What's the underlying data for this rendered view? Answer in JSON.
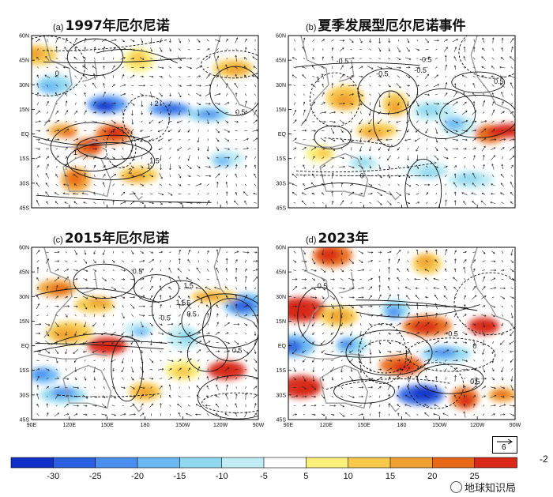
{
  "chart_data": [
    {
      "type": "heatmap",
      "panel_letter": "(a)",
      "title": "1997年厄尔尼诺",
      "y_ticks": [
        "60N",
        "45N",
        "30N",
        "15N",
        "EQ",
        "15S",
        "30S",
        "45S"
      ],
      "x_ticks": [],
      "contour_labels": [
        "2",
        "1.5",
        "2",
        "0",
        "0.5",
        "1",
        "1"
      ],
      "anomaly_patches": [
        {
          "lon": 95,
          "lat": 48,
          "value": 12
        },
        {
          "lon": 108,
          "lat": 30,
          "value": -12
        },
        {
          "lon": 150,
          "lat": 18,
          "value": -25
        },
        {
          "lon": 200,
          "lat": 15,
          "value": -22
        },
        {
          "lon": 230,
          "lat": 12,
          "value": -15
        },
        {
          "lon": 115,
          "lat": 2,
          "value": 18
        },
        {
          "lon": 135,
          "lat": -8,
          "value": 22
        },
        {
          "lon": 155,
          "lat": 0,
          "value": 20
        },
        {
          "lon": 125,
          "lat": -28,
          "value": 15
        },
        {
          "lon": 175,
          "lat": -25,
          "value": 12
        },
        {
          "lon": 245,
          "lat": -15,
          "value": -10
        },
        {
          "lon": 175,
          "lat": 45,
          "value": 8
        },
        {
          "lon": 250,
          "lat": 40,
          "value": 10
        }
      ]
    },
    {
      "type": "heatmap",
      "panel_letter": "(b)",
      "title": "夏季发展型厄尔尼诺事件",
      "y_ticks": [
        "60N",
        "45N",
        "30N",
        "15N",
        "EQ",
        "15S",
        "30S",
        "45S"
      ],
      "x_ticks": [],
      "contour_labels": [
        "-0.5",
        "-0.5",
        "0.5",
        "-0.5",
        "0",
        "1",
        "-0.5"
      ],
      "anomaly_patches": [
        {
          "lon": 135,
          "lat": 22,
          "value": 10
        },
        {
          "lon": 175,
          "lat": 18,
          "value": 12
        },
        {
          "lon": 205,
          "lat": 14,
          "value": -8
        },
        {
          "lon": 160,
          "lat": 2,
          "value": 10
        },
        {
          "lon": 225,
          "lat": 5,
          "value": -10
        },
        {
          "lon": 250,
          "lat": 0,
          "value": 22
        },
        {
          "lon": 265,
          "lat": 2,
          "value": 25
        },
        {
          "lon": 115,
          "lat": -12,
          "value": 8
        },
        {
          "lon": 150,
          "lat": -18,
          "value": -8
        },
        {
          "lon": 200,
          "lat": -22,
          "value": -8
        },
        {
          "lon": 235,
          "lat": -28,
          "value": -8
        }
      ]
    },
    {
      "type": "heatmap",
      "panel_letter": "(c)",
      "title": "2015年厄尔尼诺",
      "y_ticks": [
        "60N",
        "45N",
        "30N",
        "15N",
        "EQ",
        "15S",
        "30S",
        "45S"
      ],
      "x_ticks": [
        "90E",
        "120E",
        "150E",
        "180",
        "150W",
        "120W",
        "90W"
      ],
      "contour_labels": [
        "0.5",
        "1.5",
        "0.5",
        "1.5",
        "-0.5",
        "0.5",
        "1",
        "1.5"
      ],
      "anomaly_patches": [
        {
          "lon": 110,
          "lat": 35,
          "value": 15
        },
        {
          "lon": 140,
          "lat": 25,
          "value": 12
        },
        {
          "lon": 120,
          "lat": 8,
          "value": 10
        },
        {
          "lon": 150,
          "lat": 0,
          "value": 28
        },
        {
          "lon": 175,
          "lat": 10,
          "value": -10
        },
        {
          "lon": 210,
          "lat": 5,
          "value": -8
        },
        {
          "lon": 260,
          "lat": 25,
          "value": -20
        },
        {
          "lon": 235,
          "lat": 30,
          "value": 10
        },
        {
          "lon": 100,
          "lat": -18,
          "value": -18
        },
        {
          "lon": 115,
          "lat": -30,
          "value": -15
        },
        {
          "lon": 180,
          "lat": -28,
          "value": 12
        },
        {
          "lon": 245,
          "lat": -15,
          "value": 26
        },
        {
          "lon": 210,
          "lat": -15,
          "value": 8
        }
      ]
    },
    {
      "type": "heatmap",
      "panel_letter": "(d)",
      "title": "2023年",
      "y_ticks": [
        "60N",
        "45N",
        "30N",
        "15N",
        "EQ",
        "15S",
        "30S",
        "45S"
      ],
      "x_ticks": [
        "90E",
        "120E",
        "150E",
        "180",
        "150W",
        "120W",
        "90W"
      ],
      "contour_labels": [
        "0",
        "-0.5",
        "-1",
        "0.5",
        "0.5"
      ],
      "anomaly_patches": [
        {
          "lon": 125,
          "lat": 55,
          "value": 20
        },
        {
          "lon": 200,
          "lat": 50,
          "value": 12
        },
        {
          "lon": 100,
          "lat": 22,
          "value": 26
        },
        {
          "lon": 130,
          "lat": 18,
          "value": 12
        },
        {
          "lon": 200,
          "lat": 12,
          "value": 22
        },
        {
          "lon": 245,
          "lat": 12,
          "value": 28
        },
        {
          "lon": 175,
          "lat": 22,
          "value": -15
        },
        {
          "lon": 95,
          "lat": 0,
          "value": -20
        },
        {
          "lon": 140,
          "lat": 0,
          "value": -15
        },
        {
          "lon": 215,
          "lat": -5,
          "value": -15
        },
        {
          "lon": 180,
          "lat": -12,
          "value": 24
        },
        {
          "lon": 100,
          "lat": -25,
          "value": 26
        },
        {
          "lon": 195,
          "lat": -30,
          "value": -28
        },
        {
          "lon": 230,
          "lat": -32,
          "value": 22
        },
        {
          "lon": 260,
          "lat": -30,
          "value": 18
        }
      ]
    }
  ],
  "extent": {
    "lon_min": 90,
    "lon_max": 270,
    "lat_min": -45,
    "lat_max": 60
  },
  "colorbar": {
    "boundaries": [
      -35,
      -30,
      -25,
      -20,
      -15,
      -10,
      -5,
      5,
      10,
      15,
      20,
      25,
      30
    ],
    "labels": [
      "-30",
      "-25",
      "-20",
      "-15",
      "-10",
      "-5",
      "5",
      "10",
      "15",
      "20",
      "25"
    ],
    "colors": [
      "#1030c8",
      "#2a60e0",
      "#4a8ef0",
      "#6ab8f4",
      "#8ed8f0",
      "#c0ecf4",
      "#ffffff",
      "#fbf07a",
      "#f8c848",
      "#f0a030",
      "#e86818",
      "#d82818"
    ],
    "unit": "-2"
  },
  "reference_vector": {
    "value": "6"
  },
  "watermark": "地球知识局"
}
